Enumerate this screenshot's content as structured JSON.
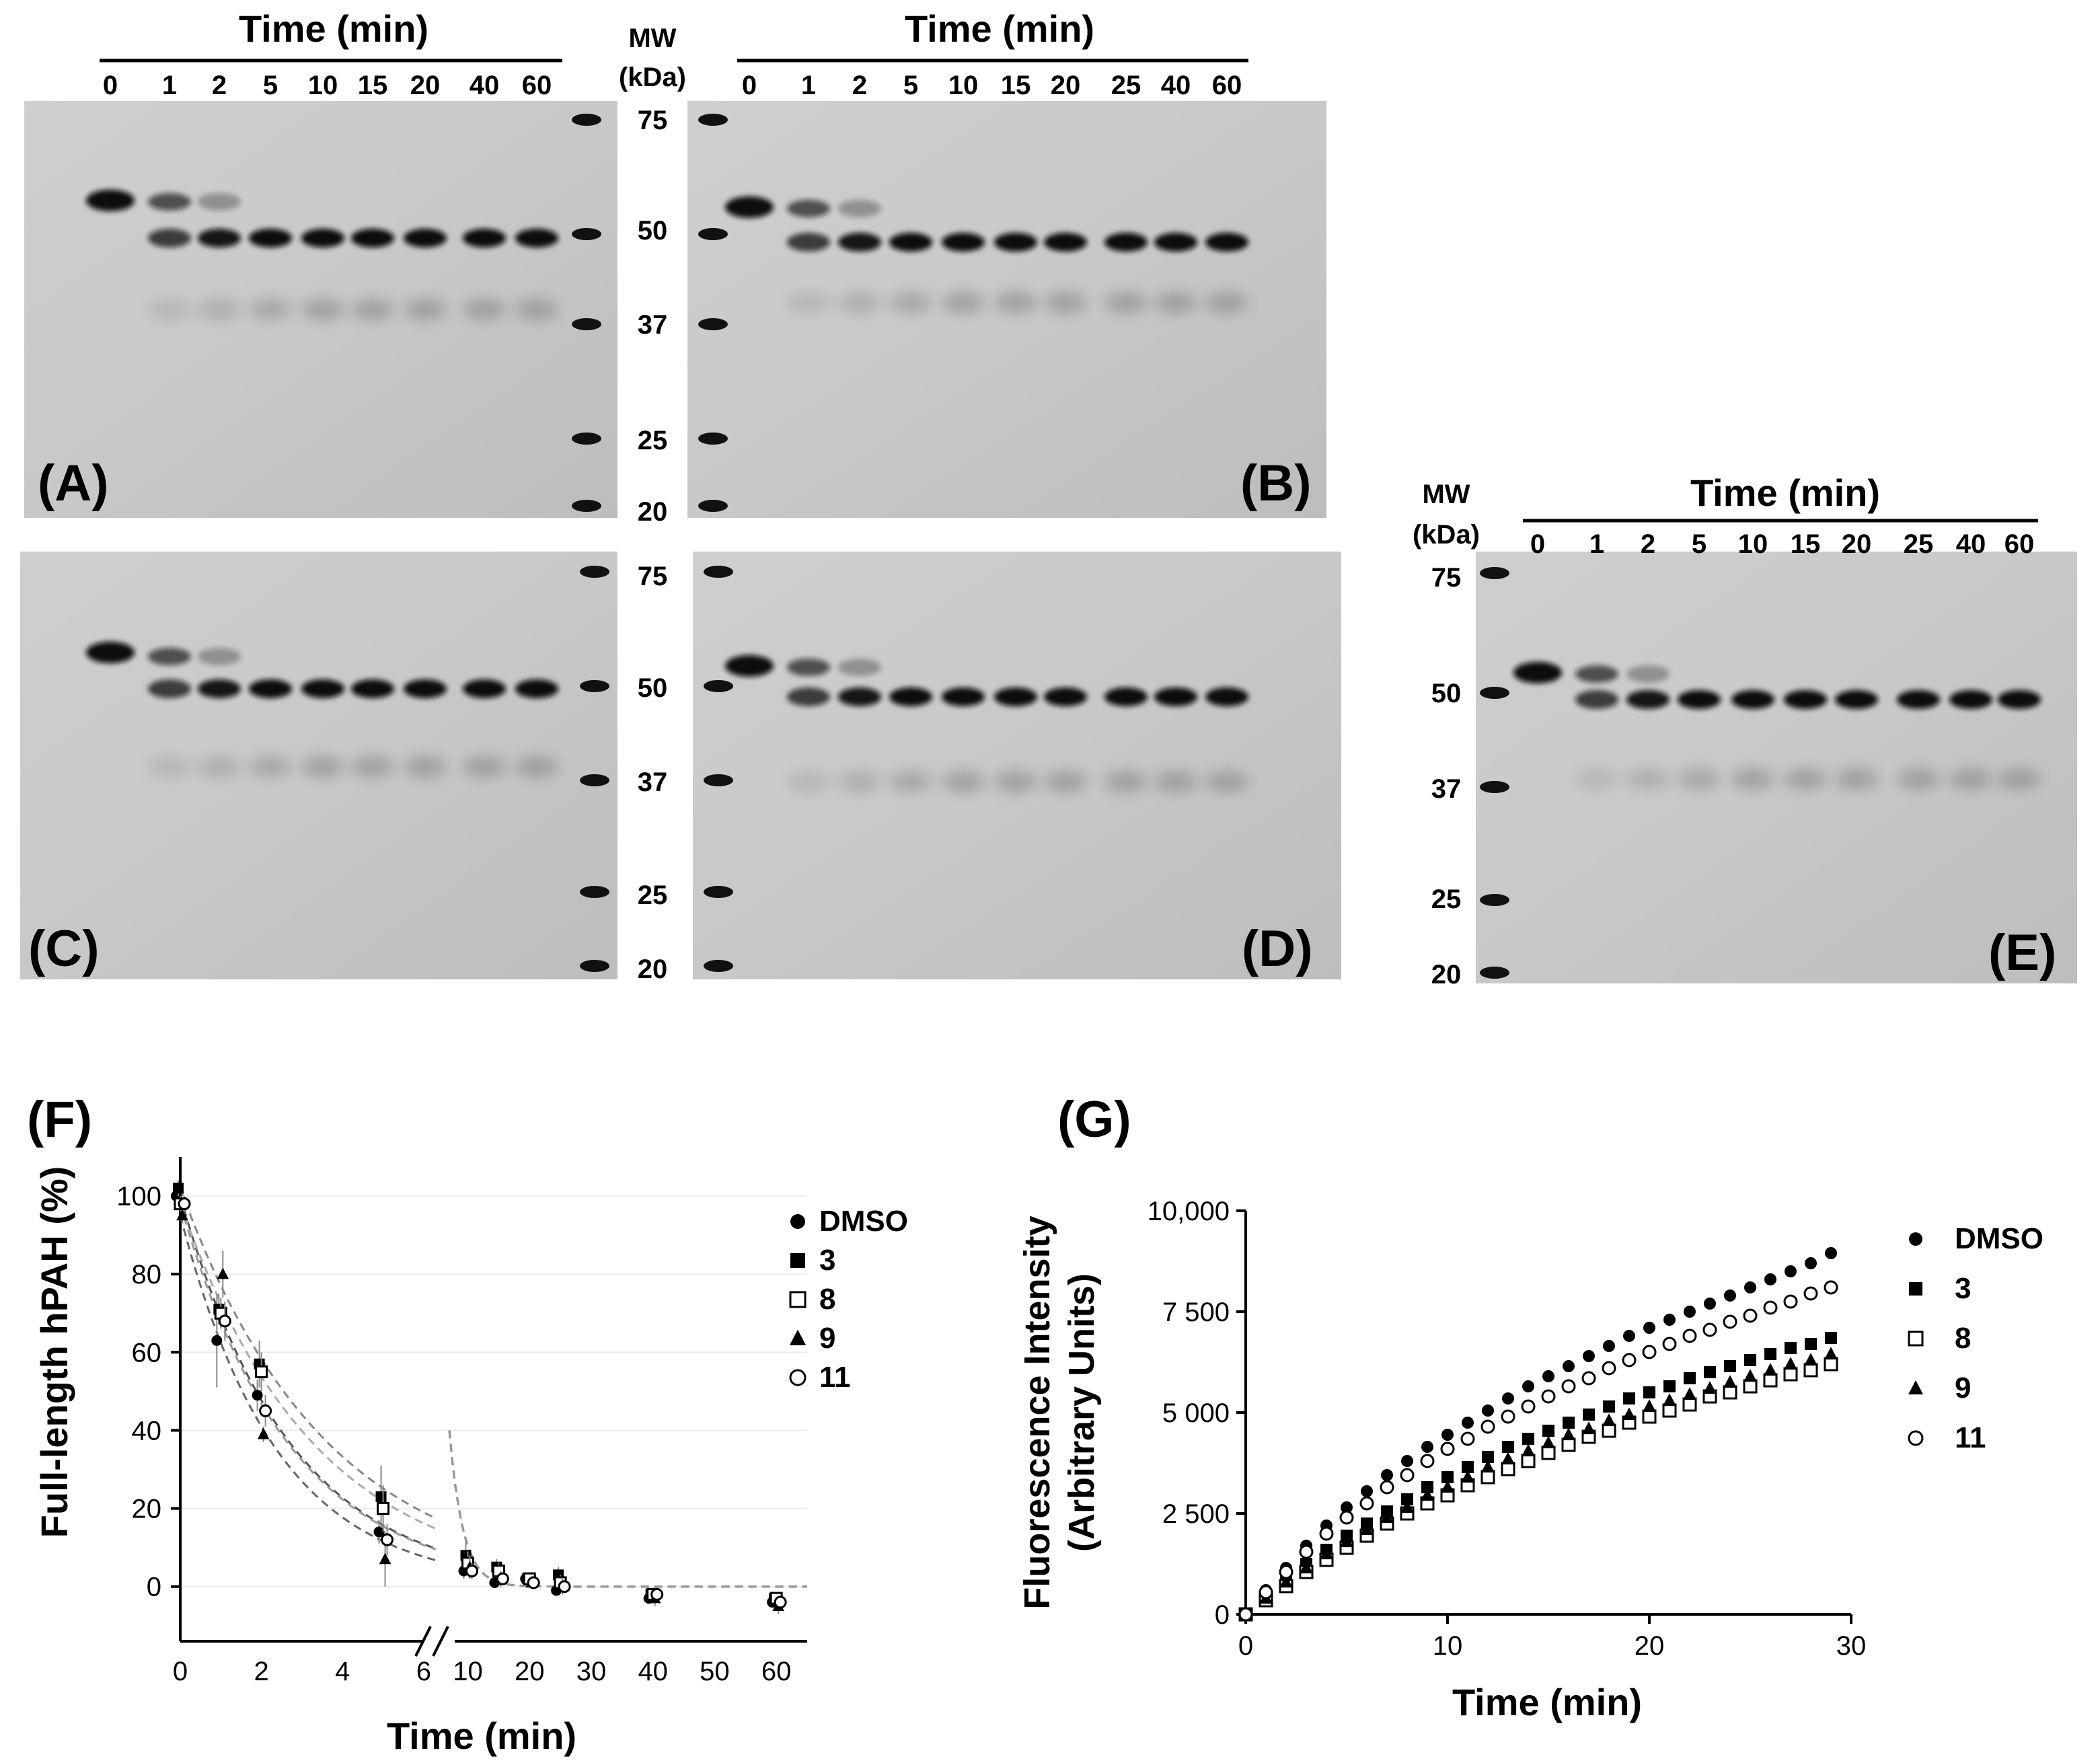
{
  "gels": {
    "time_title": "Time (min)",
    "mw_title_line1": "MW",
    "mw_title_line2": "(kDa)",
    "mw_markers": [
      "75",
      "50",
      "37",
      "25",
      "20"
    ],
    "top_left_lanes": [
      "0",
      "1",
      "2",
      "5",
      "10",
      "15",
      "20",
      "40",
      "60"
    ],
    "top_right_lanes": [
      "0",
      "1",
      "2",
      "5",
      "10",
      "15",
      "20",
      "25",
      "40",
      "60"
    ],
    "e_lanes": [
      "0",
      "1",
      "2",
      "5",
      "10",
      "15",
      "20",
      "25",
      "40",
      "60"
    ],
    "panel_a": "(A)",
    "panel_b": "(B)",
    "panel_c": "(C)",
    "panel_d": "(D)",
    "panel_e": "(E)"
  },
  "chart_data": [
    {
      "panel_label": "(F)",
      "type": "scatter",
      "title": "",
      "xlabel": "Time (min)",
      "ylabel": "Full-length hPAH (%)",
      "x_ticks_left": [
        "0",
        "2",
        "4",
        "6"
      ],
      "x_ticks_right": [
        "10",
        "20",
        "30",
        "40",
        "50",
        "60"
      ],
      "y_ticks": [
        "0",
        "20",
        "40",
        "60",
        "80",
        "100"
      ],
      "xlim_left": [
        0,
        6.5
      ],
      "xlim_right": [
        7,
        65
      ],
      "ylim": [
        -14,
        110
      ],
      "axis_break": true,
      "legend_labels": [
        "DMSO",
        "3",
        "8",
        "9",
        "11"
      ],
      "markers": [
        "filled-circle",
        "filled-square",
        "open-square",
        "filled-triangle",
        "open-circle"
      ],
      "series": [
        {
          "name": "DMSO",
          "x": [
            0,
            1,
            2,
            5,
            10,
            15,
            20,
            25,
            40,
            60
          ],
          "y": [
            100,
            63,
            49,
            14,
            4,
            1,
            2,
            -1,
            -3,
            -4
          ],
          "err": [
            3,
            12,
            4,
            3,
            2,
            1,
            1,
            1,
            1,
            1
          ]
        },
        {
          "name": "3",
          "x": [
            0,
            1,
            2,
            5,
            10,
            15,
            20,
            25,
            40,
            60
          ],
          "y": [
            102,
            71,
            57,
            23,
            8,
            5,
            2,
            3,
            -2,
            -3
          ],
          "err": [
            2,
            4,
            6,
            8,
            4,
            2,
            1,
            2,
            1,
            1
          ]
        },
        {
          "name": "8",
          "x": [
            0,
            1,
            2,
            5,
            10,
            15,
            20,
            25,
            40,
            60
          ],
          "y": [
            98,
            70,
            55,
            20,
            6,
            4,
            2,
            1,
            -2,
            -3
          ],
          "err": [
            2,
            4,
            5,
            6,
            3,
            2,
            1,
            2,
            1,
            1
          ]
        },
        {
          "name": "9",
          "x": [
            0,
            1,
            2,
            5,
            10,
            15,
            20,
            25,
            40,
            60
          ],
          "y": [
            95,
            80,
            39,
            7,
            5,
            2,
            1,
            0,
            -3,
            -5
          ],
          "err": [
            2,
            6,
            2,
            7,
            3,
            2,
            1,
            2,
            2,
            2
          ]
        },
        {
          "name": "11",
          "x": [
            0,
            1,
            2,
            5,
            10,
            15,
            20,
            25,
            40,
            60
          ],
          "y": [
            98,
            68,
            45,
            12,
            4,
            2,
            1,
            0,
            -2,
            -4
          ],
          "err": [
            2,
            5,
            4,
            4,
            2,
            1,
            1,
            1,
            1,
            1
          ]
        }
      ]
    },
    {
      "panel_label": "(G)",
      "type": "scatter",
      "title": "",
      "xlabel": "Time (min)",
      "ylabel_line1": "Fluorescence Intensity",
      "ylabel_line2": "(Arbitrary Units)",
      "x_ticks": [
        "0",
        "10",
        "20",
        "30"
      ],
      "y_ticks": [
        "0",
        "2 500",
        "5 000",
        "7 500",
        "10,000"
      ],
      "xlim": [
        0,
        30
      ],
      "ylim": [
        0,
        10000
      ],
      "legend_labels": [
        "DMSO",
        "3",
        "8",
        "9",
        "11"
      ],
      "markers": [
        "filled-circle",
        "filled-square",
        "open-square",
        "filled-triangle",
        "open-circle"
      ],
      "x": [
        0,
        1,
        2,
        3,
        4,
        5,
        6,
        7,
        8,
        9,
        10,
        11,
        12,
        13,
        14,
        15,
        16,
        17,
        18,
        19,
        20,
        21,
        22,
        23,
        24,
        25,
        26,
        27,
        28,
        29
      ],
      "series": [
        {
          "name": "DMSO",
          "values": [
            0,
            600,
            1150,
            1700,
            2200,
            2650,
            3050,
            3450,
            3800,
            4150,
            4450,
            4750,
            5050,
            5350,
            5650,
            5900,
            6150,
            6400,
            6650,
            6900,
            7100,
            7300,
            7500,
            7700,
            7900,
            8100,
            8300,
            8500,
            8700,
            8950
          ]
        },
        {
          "name": "3",
          "values": [
            0,
            450,
            850,
            1250,
            1600,
            1950,
            2250,
            2550,
            2850,
            3150,
            3400,
            3650,
            3900,
            4150,
            4350,
            4550,
            4750,
            4950,
            5150,
            5350,
            5500,
            5650,
            5850,
            6000,
            6150,
            6300,
            6450,
            6600,
            6700,
            6850
          ]
        },
        {
          "name": "8",
          "values": [
            0,
            350,
            700,
            1050,
            1350,
            1650,
            1950,
            2250,
            2500,
            2750,
            2950,
            3200,
            3400,
            3600,
            3800,
            4000,
            4200,
            4400,
            4550,
            4750,
            4900,
            5050,
            5200,
            5400,
            5500,
            5650,
            5800,
            5950,
            6050,
            6200
          ]
        },
        {
          "name": "9",
          "values": [
            0,
            400,
            800,
            1150,
            1500,
            1800,
            2100,
            2400,
            2650,
            2950,
            3150,
            3400,
            3650,
            3850,
            4050,
            4250,
            4450,
            4600,
            4800,
            4950,
            5150,
            5300,
            5450,
            5600,
            5750,
            5900,
            6050,
            6200,
            6300,
            6450
          ]
        },
        {
          "name": "11",
          "values": [
            0,
            550,
            1050,
            1550,
            2000,
            2400,
            2750,
            3150,
            3450,
            3800,
            4100,
            4350,
            4650,
            4900,
            5150,
            5400,
            5650,
            5850,
            6100,
            6300,
            6500,
            6700,
            6900,
            7050,
            7250,
            7400,
            7600,
            7750,
            7950,
            8100
          ]
        }
      ]
    }
  ]
}
